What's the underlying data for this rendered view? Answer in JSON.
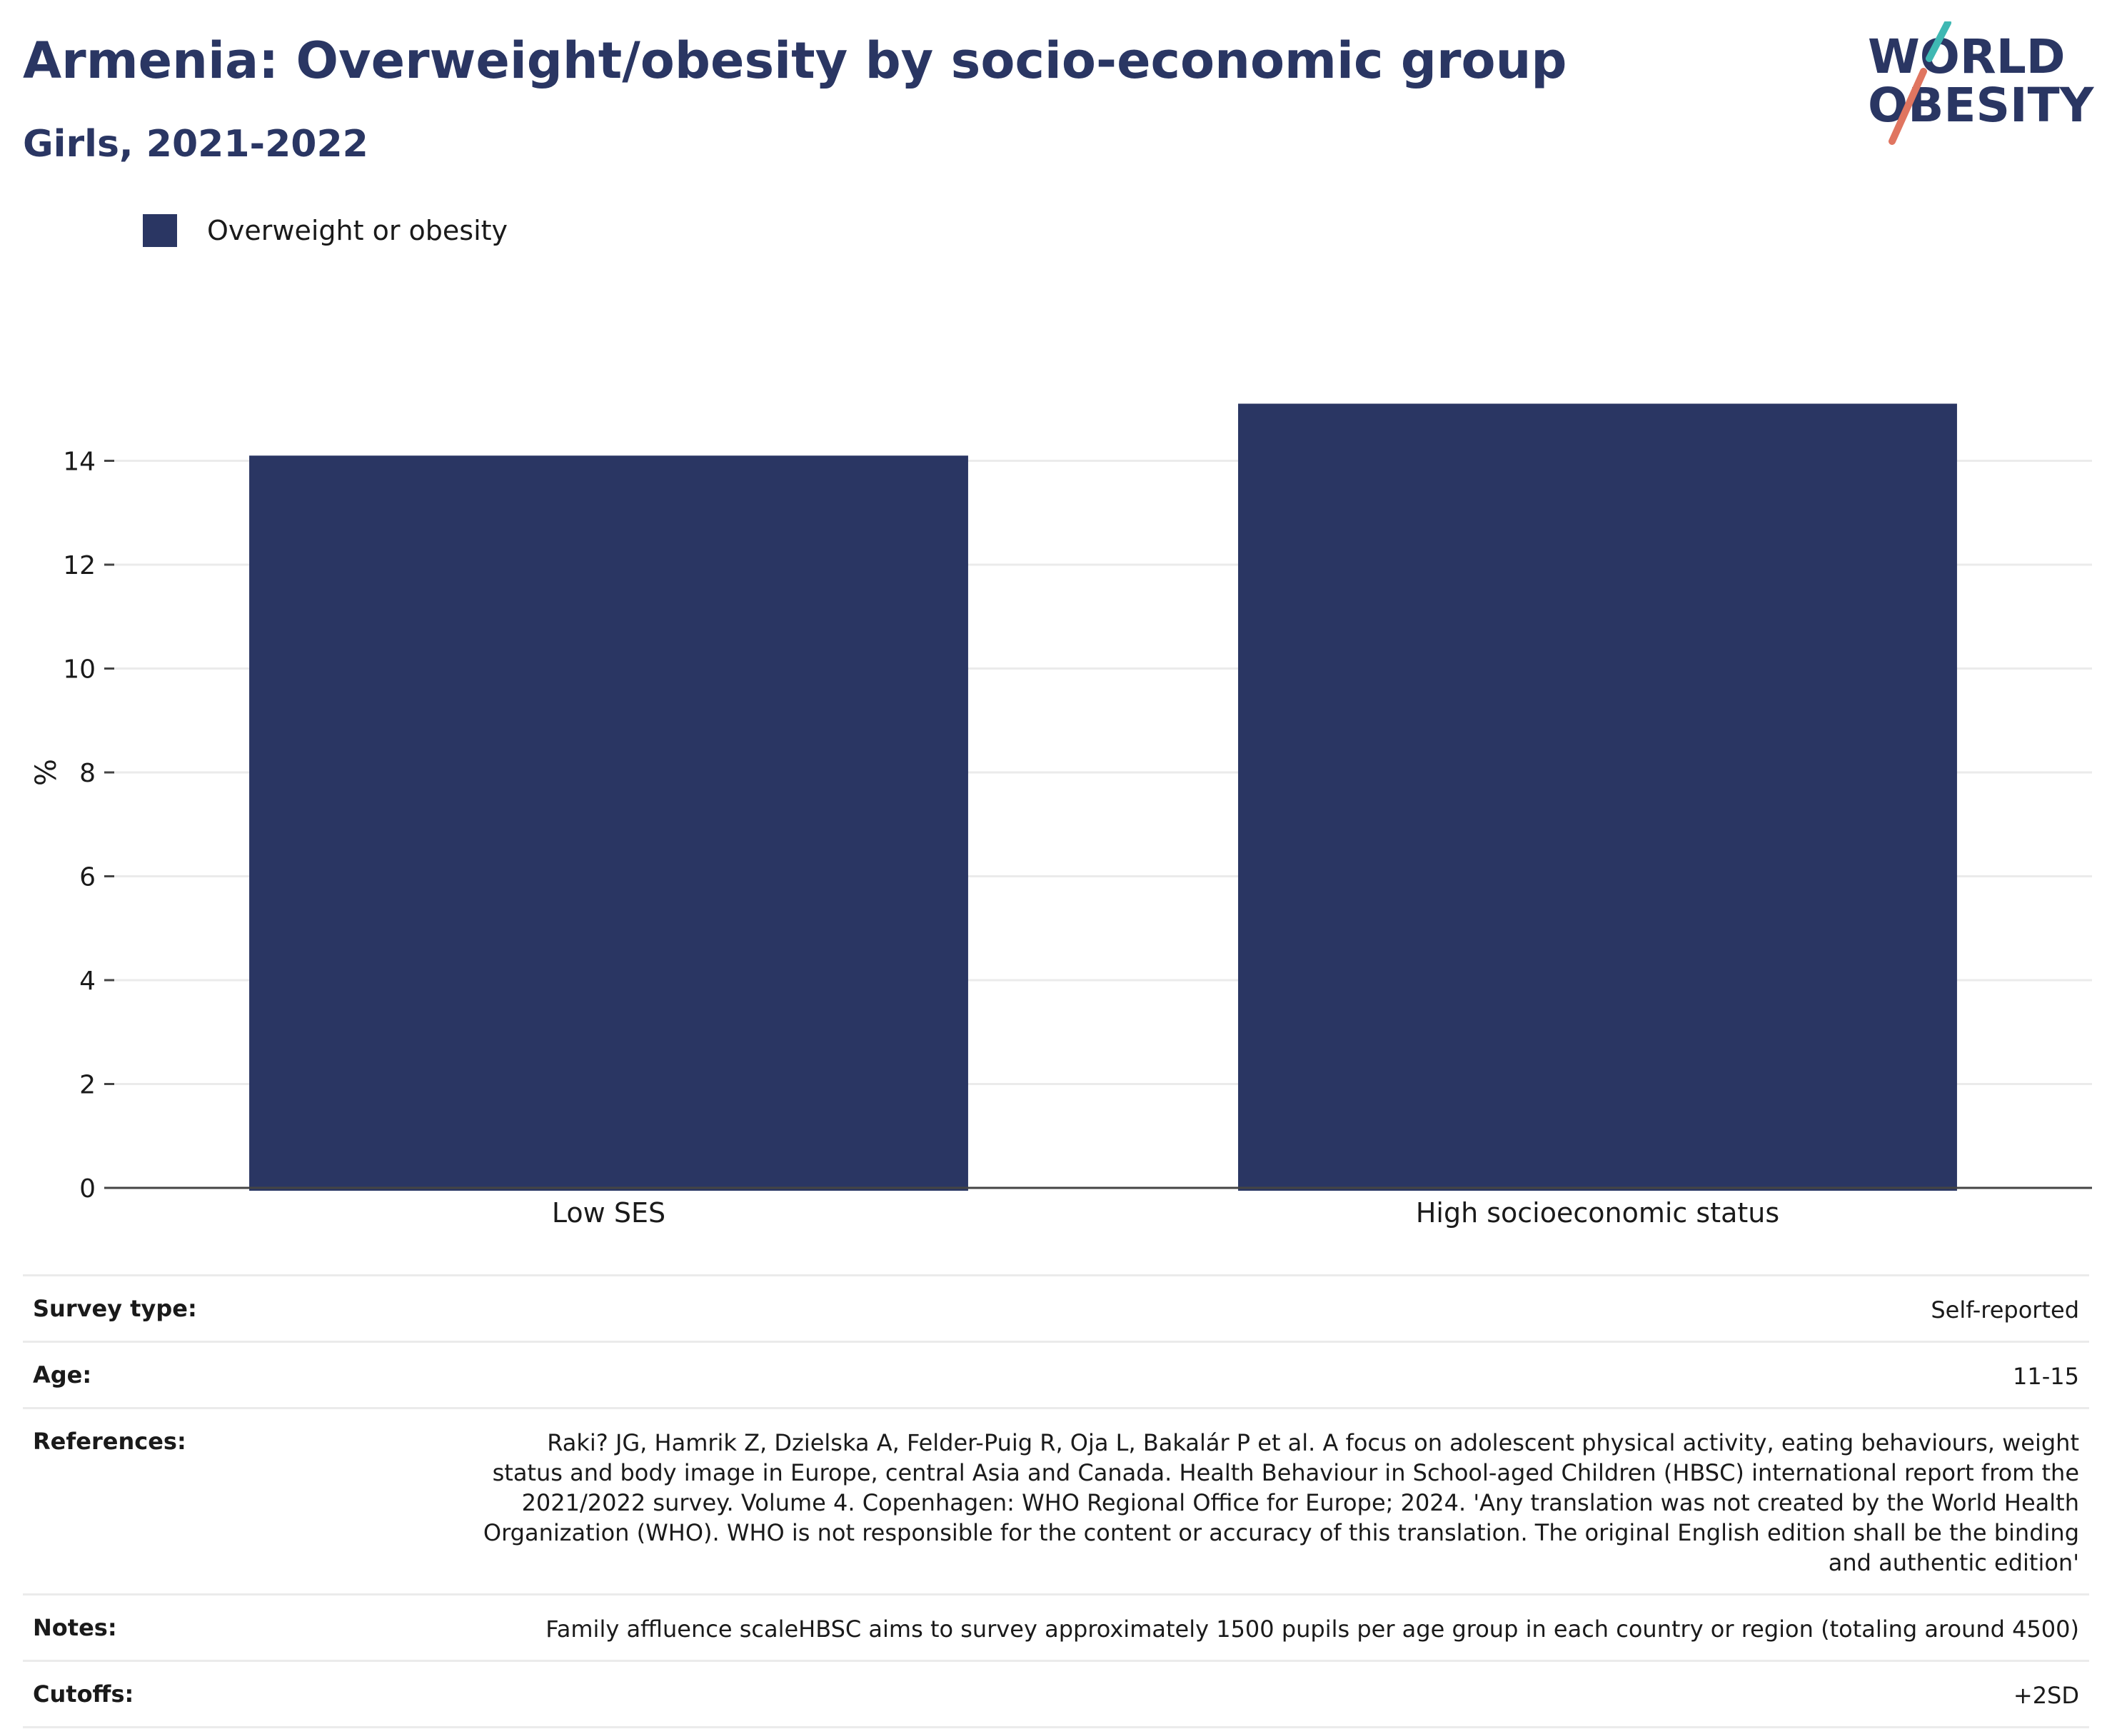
{
  "header": {
    "title": "Armenia: Overweight/obesity by socio-economic group",
    "subtitle": "Girls, 2021-2022"
  },
  "logo": {
    "line1": "WORLD",
    "line2": "OBESITY",
    "colors": {
      "text": "#2a3663",
      "slash_top": "#3fb8b3",
      "slash_bottom": "#e07560"
    }
  },
  "chart_data": {
    "type": "bar",
    "categories": [
      "Low SES",
      "High socioeconomic status"
    ],
    "series": [
      {
        "name": "Overweight or obesity",
        "values": [
          14.1,
          15.1
        ],
        "color": "#2a3663"
      }
    ],
    "ylabel": "%",
    "ylim": [
      0,
      16
    ],
    "yticks": [
      0,
      2,
      4,
      6,
      8,
      10,
      12,
      14
    ],
    "grid": true,
    "legend_position": "top-left"
  },
  "info": {
    "rows": [
      {
        "key": "Survey type:",
        "value": "Self-reported"
      },
      {
        "key": "Age:",
        "value": "11-15"
      },
      {
        "key": "References:",
        "value": "Raki? JG, Hamrik Z, Dzielska A, Felder-Puig R, Oja L, Bakalár P et al. A focus on adolescent physical activity, eating behaviours, weight status and body image in Europe, central Asia and Canada. Health Behaviour in School-aged Children (HBSC) international report from the 2021/2022 survey. Volume 4. Copenhagen: WHO Regional Office for Europe; 2024. 'Any translation was not created by the World Health Organization (WHO). WHO is not responsible for the content or accuracy of this translation. The original English edition shall be the binding and authentic edition'"
      },
      {
        "key": "Notes:",
        "value": "Family affluence scaleHBSC aims to survey approximately 1500 pupils per age group in each country or region (totaling around 4500)"
      },
      {
        "key": "Cutoffs:",
        "value": "+2SD"
      }
    ]
  }
}
